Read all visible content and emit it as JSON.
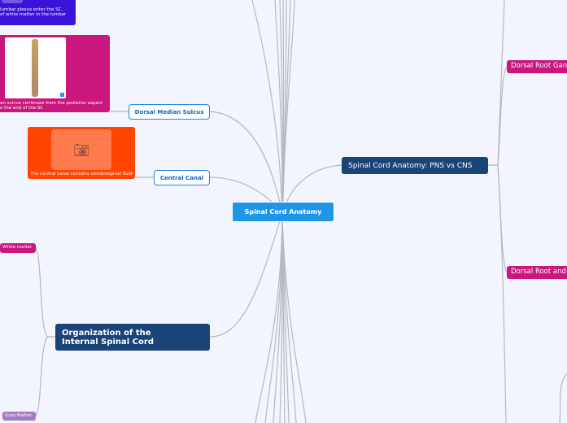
{
  "central": {
    "label": "Spinal Cord Anatomy"
  },
  "topics": {
    "dorsal_median_sulcus": "Dorsal Median Sulcus",
    "central_canal": "Central Canal",
    "pns_vs_cns": "Spinal Cord Anatomy: PNS vs CNS",
    "internal_org": "Organization of the Internal Spinal Cord"
  },
  "subtopics": {
    "white_matter": "White matter",
    "gray_matter": "Gray Matter",
    "drg": "Dorsal Root Gan",
    "dr_and": "Dorsal Root and"
  },
  "notes": {
    "lumbar_line1": "lumbar plexus enter the SC,",
    "lumbar_line2": "of white matter in the lumbar",
    "sulcus_line1": "an sulcus continues from the posterior aspect",
    "sulcus_line2": "o the end of the SC",
    "canal": "The central canal contains cerebrospinal fluid"
  },
  "colors": {
    "central": "#1e96e8",
    "main": "#1a4378",
    "pink": "#c9177e",
    "orange": "#ff4500",
    "purple": "#3a12d8",
    "lavender": "#a47cc4"
  }
}
